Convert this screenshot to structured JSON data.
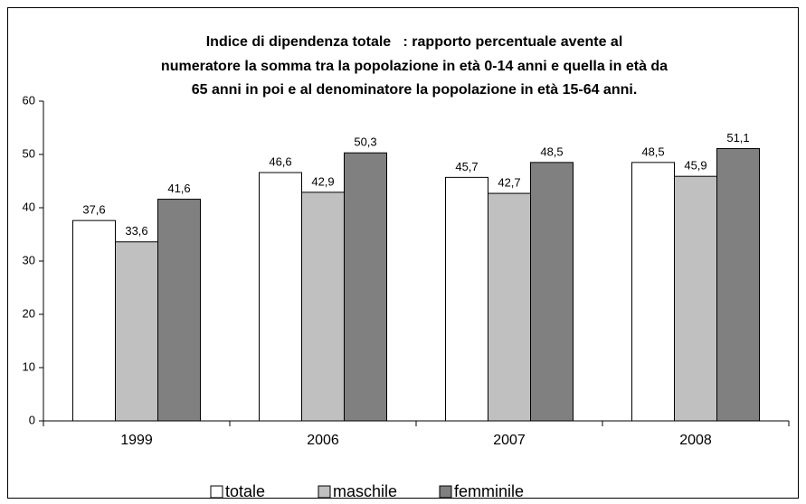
{
  "chart_data": {
    "type": "bar",
    "title": [
      "Indice di dipendenza totale   : rapporto percentuale avente al",
      "numeratore la somma tra la popolazione in età 0-14 anni e quella in età da",
      "65 anni in poi e al denominatore la popolazione in età 15-64 anni."
    ],
    "categories": [
      "1999",
      "2006",
      "2007",
      "2008"
    ],
    "series": [
      {
        "name": "totale",
        "color": "#ffffff",
        "values": [
          37.6,
          46.6,
          45.7,
          48.5
        ],
        "value_labels": [
          "37,6",
          "46,6",
          "45,7",
          "48,5"
        ]
      },
      {
        "name": "maschile",
        "color": "#c0c0c0",
        "values": [
          33.6,
          42.9,
          42.7,
          45.9
        ],
        "value_labels": [
          "33,6",
          "42,9",
          "42,7",
          "45,9"
        ]
      },
      {
        "name": "femminile",
        "color": "#808080",
        "values": [
          41.6,
          50.3,
          48.5,
          51.1
        ],
        "value_labels": [
          "41,6",
          "50,3",
          "48,5",
          "51,1"
        ]
      }
    ],
    "ylim": [
      0,
      60
    ],
    "yticks": [
      0,
      10,
      20,
      30,
      40,
      50,
      60
    ],
    "grid": false,
    "legend": "bottom"
  }
}
